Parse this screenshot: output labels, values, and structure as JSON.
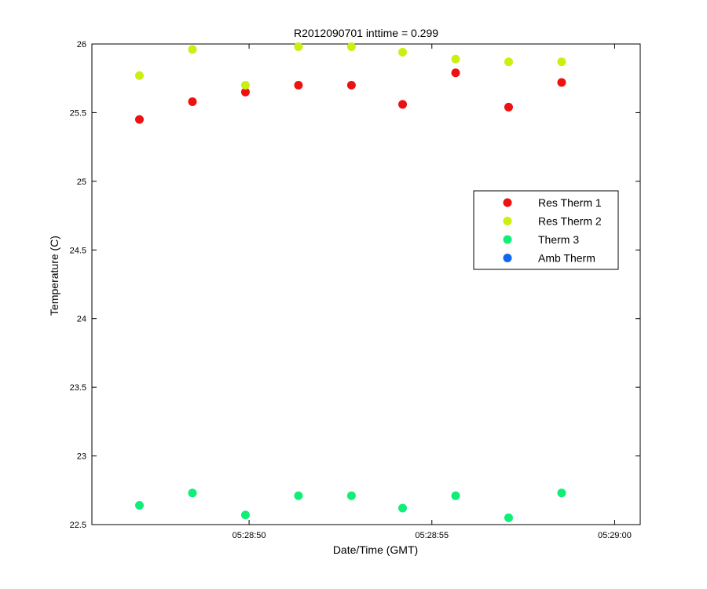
{
  "chart_data": {
    "type": "scatter",
    "title": "R2012090701 inttime = 0.299",
    "xlabel": "Date/Time (GMT)",
    "ylabel": "Temperature (C)",
    "ylim": [
      22.5,
      26
    ],
    "xlim": [
      "05:28:45.70",
      "05:29:00.70"
    ],
    "x_ticks": [
      "05:28:50",
      "05:28:55",
      "05:29:00"
    ],
    "y_ticks": [
      "22.5",
      "23",
      "23.5",
      "24",
      "24.5",
      "25",
      "25.5",
      "26"
    ],
    "grid": false,
    "legend_position": "right-center",
    "x": [
      "05:28:47.00",
      "05:28:48.45",
      "05:28:49.90",
      "05:28:51.35",
      "05:28:52.80",
      "05:28:54.20",
      "05:28:55.65",
      "05:28:57.10",
      "05:28:58.55"
    ],
    "series": [
      {
        "name": "Res Therm 1",
        "color": "#ee1111",
        "values": [
          25.45,
          25.58,
          25.65,
          25.7,
          25.7,
          25.56,
          25.79,
          25.54,
          25.72
        ]
      },
      {
        "name": "Res Therm 2",
        "color": "#ccee11",
        "values": [
          25.77,
          25.96,
          25.7,
          25.98,
          25.98,
          25.94,
          25.89,
          25.87,
          25.87
        ]
      },
      {
        "name": "Therm 3",
        "color": "#11ee77",
        "values": [
          22.64,
          22.73,
          22.57,
          22.71,
          22.71,
          22.62,
          22.71,
          22.55,
          22.73
        ]
      },
      {
        "name": "Amb Therm",
        "color": "#1166ee",
        "values": []
      }
    ]
  }
}
